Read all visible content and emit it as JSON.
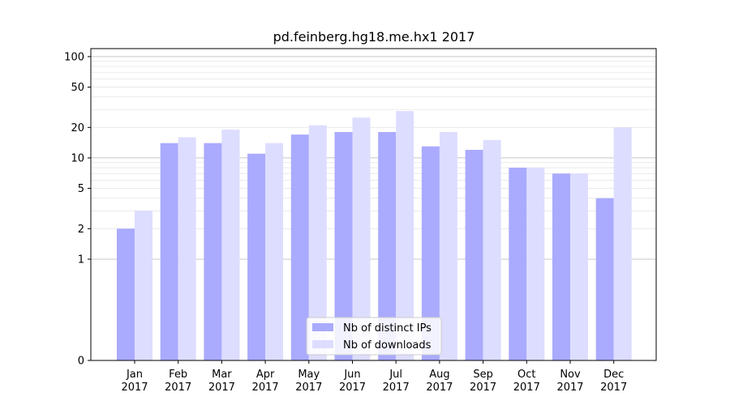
{
  "chart_data": {
    "type": "bar",
    "title": "pd.feinberg.hg18.me.hx1 2017",
    "xlabel": "",
    "ylabel": "",
    "categories": [
      [
        "Jan",
        "2017"
      ],
      [
        "Feb",
        "2017"
      ],
      [
        "Mar",
        "2017"
      ],
      [
        "Apr",
        "2017"
      ],
      [
        "May",
        "2017"
      ],
      [
        "Jun",
        "2017"
      ],
      [
        "Jul",
        "2017"
      ],
      [
        "Aug",
        "2017"
      ],
      [
        "Sep",
        "2017"
      ],
      [
        "Oct",
        "2017"
      ],
      [
        "Nov",
        "2017"
      ],
      [
        "Dec",
        "2017"
      ]
    ],
    "series": [
      {
        "name": "Nb of distinct IPs",
        "color": "#aaaaff",
        "values": [
          2,
          14,
          14,
          11,
          17,
          18,
          18,
          13,
          12,
          8,
          7,
          4
        ]
      },
      {
        "name": "Nb of downloads",
        "color": "#ddddff",
        "values": [
          3,
          16,
          19,
          14,
          21,
          25,
          29,
          18,
          15,
          8,
          7,
          20
        ]
      }
    ],
    "yscale": "symlog",
    "ylim": [
      0,
      120
    ],
    "yticks": [
      0,
      1,
      2,
      5,
      10,
      20,
      50,
      100
    ],
    "grid": true,
    "legend": "bottom-center"
  }
}
